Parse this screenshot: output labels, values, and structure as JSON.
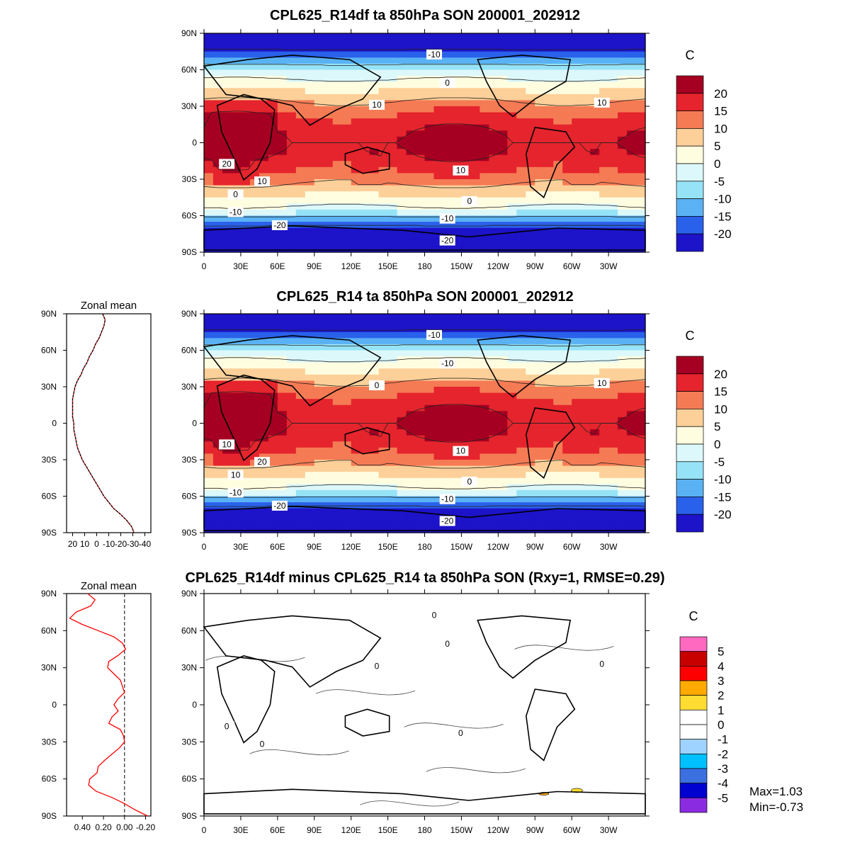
{
  "panels": [
    {
      "title": "CPL625_R14df ta 850hPa SON 200001_202912",
      "kind": "field",
      "lat_ticks": [
        "90N",
        "60N",
        "30N",
        "0",
        "30S",
        "60S",
        "90S"
      ],
      "lon_ticks": [
        "0",
        "30E",
        "60E",
        "90E",
        "120E",
        "150E",
        "180",
        "150W",
        "120W",
        "90W",
        "60W",
        "30W"
      ],
      "contour_labels": [
        "-10",
        "0",
        "10",
        "10",
        "20",
        "10",
        "10",
        "0",
        "0",
        "-10",
        "-10",
        "-20",
        "-20"
      ],
      "colorbar": {
        "unit": "C",
        "labels": [
          "20",
          "15",
          "10",
          "5",
          "0",
          "-5",
          "-10",
          "-15",
          "-20"
        ],
        "colors": [
          "#a50021",
          "#e5242d",
          "#f57b54",
          "#fdd099",
          "#fffde0",
          "#dcf8fa",
          "#96e3f7",
          "#5ab2f5",
          "#2a61ea",
          "#1d13c9"
        ]
      },
      "zonal_mean": null
    },
    {
      "title": "CPL625_R14 ta 850hPa SON 200001_202912",
      "kind": "field",
      "lat_ticks": [
        "90N",
        "60N",
        "30N",
        "0",
        "30S",
        "60S",
        "90S"
      ],
      "lon_ticks": [
        "0",
        "30E",
        "60E",
        "90E",
        "120E",
        "150E",
        "180",
        "150W",
        "120W",
        "90W",
        "60W",
        "30W"
      ],
      "contour_labels": [
        "-10",
        "-10",
        "0",
        "10",
        "10",
        "20",
        "10",
        "10",
        "0",
        "-10",
        "-10",
        "-20",
        "-20"
      ],
      "colorbar": {
        "unit": "C",
        "labels": [
          "20",
          "15",
          "10",
          "5",
          "0",
          "-5",
          "-10",
          "-15",
          "-20"
        ],
        "colors": [
          "#a50021",
          "#e5242d",
          "#f57b54",
          "#fdd099",
          "#fffde0",
          "#dcf8fa",
          "#96e3f7",
          "#5ab2f5",
          "#2a61ea",
          "#1d13c9"
        ]
      },
      "zonal_mean": {
        "title": "Zonal mean",
        "x_ticks": [
          "20",
          "10",
          "0",
          "-10",
          "-20",
          "-30",
          "-40"
        ],
        "lat_ticks": [
          "90N",
          "60N",
          "30N",
          "0",
          "30S",
          "60S",
          "90S"
        ],
        "xlim": [
          25,
          -45
        ],
        "profile_lat": [
          90,
          85,
          80,
          75,
          70,
          65,
          60,
          55,
          50,
          45,
          40,
          35,
          30,
          25,
          20,
          15,
          10,
          5,
          0,
          -5,
          -10,
          -15,
          -20,
          -25,
          -30,
          -35,
          -40,
          -45,
          -50,
          -55,
          -60,
          -65,
          -70,
          -75,
          -80,
          -85,
          -90
        ],
        "profile_val": [
          -5,
          -7,
          -6,
          -4,
          -2,
          1,
          3,
          6,
          8,
          11,
          13,
          16,
          18,
          19,
          20,
          20,
          20,
          20,
          19,
          19,
          18,
          17,
          16,
          14,
          12,
          9,
          6,
          3,
          0,
          -3,
          -6,
          -10,
          -14,
          -20,
          -25,
          -29,
          -31
        ],
        "line_colors": [
          "#d01c1c",
          "#000000"
        ]
      }
    },
    {
      "title": "CPL625_R14df minus CPL625_R14 ta 850hPa SON (Rxy=1, RMSE=0.29)",
      "kind": "diff",
      "lat_ticks": [
        "90N",
        "60N",
        "30N",
        "0",
        "30S",
        "60S",
        "90S"
      ],
      "lon_ticks": [
        "0",
        "30E",
        "60E",
        "90E",
        "120E",
        "150E",
        "180",
        "150W",
        "120W",
        "90W",
        "60W",
        "30W"
      ],
      "contour_labels": [
        "0",
        "0",
        "0",
        "0",
        "0",
        "0",
        "0"
      ],
      "colorbar": {
        "unit": "C",
        "labels": [
          "5",
          "4",
          "3",
          "2",
          "1",
          "0",
          "-1",
          "-2",
          "-3",
          "-4",
          "-5"
        ],
        "colors": [
          "#ff69c0",
          "#c80000",
          "#ff0000",
          "#ffaa00",
          "#ffdc32",
          "#ffffff",
          "#ffffff",
          "#9fd3ff",
          "#00c0ff",
          "#3a70e0",
          "#0000d0",
          "#8a2be2"
        ]
      },
      "zonal_mean": {
        "title": "Zonal mean",
        "x_ticks": [
          "0.40",
          "0.20",
          "0.00",
          "-0.20"
        ],
        "lat_ticks": [
          "90N",
          "60N",
          "30N",
          "0",
          "30S",
          "60S",
          "90S"
        ],
        "xlim": [
          0.55,
          -0.25
        ],
        "profile_lat": [
          90,
          85,
          80,
          75,
          70,
          65,
          60,
          55,
          50,
          45,
          40,
          35,
          30,
          25,
          20,
          15,
          10,
          5,
          0,
          -5,
          -10,
          -15,
          -20,
          -25,
          -30,
          -35,
          -40,
          -45,
          -50,
          -55,
          -60,
          -65,
          -70,
          -75,
          -80,
          -85,
          -90
        ],
        "profile_val": [
          0.35,
          0.28,
          0.32,
          0.46,
          0.52,
          0.4,
          0.25,
          0.1,
          0.02,
          -0.01,
          0.06,
          0.15,
          0.16,
          0.1,
          0.04,
          0.02,
          0.0,
          0.06,
          0.1,
          0.06,
          0.12,
          0.15,
          0.04,
          0.01,
          0.0,
          0.05,
          0.12,
          0.19,
          0.25,
          0.26,
          0.33,
          0.34,
          0.27,
          0.12,
          0.0,
          -0.1,
          -0.22
        ],
        "line_colors": [
          "#ff0000"
        ]
      },
      "stats": {
        "max": "Max=1.03",
        "min": "Min=-0.73"
      }
    }
  ]
}
